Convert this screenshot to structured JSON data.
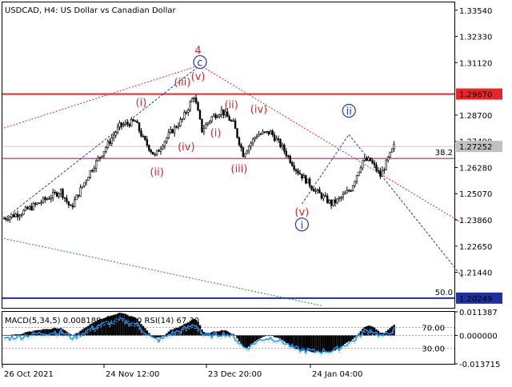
{
  "chart_data": {
    "type": "candlestick",
    "symbol_caption": "USDCAD, H4:  US Dollar vs Canadian Dollar",
    "price_axis": {
      "ticks": [
        1.3354,
        1.3233,
        1.3112,
        1.287,
        1.2749,
        1.2628,
        1.2507,
        1.2386,
        1.2265,
        1.2144
      ],
      "ticks_text": [
        "1.33540",
        "1.32330",
        "1.31120",
        "1.28700",
        "1.27490",
        "1.26280",
        "1.25070",
        "1.23860",
        "1.22650",
        "1.21440"
      ],
      "range": [
        1.198,
        1.339
      ]
    },
    "price_tags": [
      {
        "value": 1.2967,
        "label": "1.29670",
        "color": "#e8262a"
      },
      {
        "value": 1.27252,
        "label": "1.27252",
        "color": "#c0c0c0"
      },
      {
        "value": 1.20249,
        "label": "1.20249",
        "color": "#1f2f9e"
      }
    ],
    "levels": [
      {
        "value": 1.2967,
        "color": "#e8262a",
        "label": ""
      },
      {
        "value": 1.267,
        "color": "#8a1a4a",
        "label": "38.2"
      },
      {
        "value": 1.20249,
        "color": "#1f2f9e",
        "label": "50.0"
      }
    ],
    "time_axis": [
      "26 Oct 2021",
      "24 Nov 12:00",
      "23 Dec 20:00",
      "24 Jan 04:00"
    ],
    "bar_count": 200,
    "price_path": [
      [
        0,
        1.239
      ],
      [
        10,
        1.242
      ],
      [
        20,
        1.247
      ],
      [
        30,
        1.252
      ],
      [
        35,
        1.244
      ],
      [
        45,
        1.261
      ],
      [
        55,
        1.275
      ],
      [
        60,
        1.282
      ],
      [
        68,
        1.284
      ],
      [
        72,
        1.276
      ],
      [
        78,
        1.268
      ],
      [
        82,
        1.274
      ],
      [
        86,
        1.279
      ],
      [
        92,
        1.285
      ],
      [
        98,
        1.296
      ],
      [
        102,
        1.28
      ],
      [
        107,
        1.286
      ],
      [
        112,
        1.289
      ],
      [
        118,
        1.283
      ],
      [
        123,
        1.269
      ],
      [
        130,
        1.278
      ],
      [
        137,
        1.279
      ],
      [
        143,
        1.272
      ],
      [
        150,
        1.262
      ],
      [
        160,
        1.252
      ],
      [
        168,
        1.246
      ],
      [
        172,
        1.248
      ],
      [
        178,
        1.253
      ],
      [
        184,
        1.266
      ],
      [
        188,
        1.266
      ],
      [
        193,
        1.259
      ],
      [
        200,
        1.2725
      ]
    ],
    "wave_labels": [
      {
        "text": "4",
        "bar": 99,
        "price": 1.3155,
        "color": "#d7262c"
      },
      {
        "text": "c",
        "bar": 100,
        "price": 1.31,
        "color": "#1d3bb3",
        "circled": true
      },
      {
        "text": "(v)",
        "bar": 99,
        "price": 1.3035,
        "color": "#d7262c"
      },
      {
        "text": "(iii)",
        "bar": 91,
        "price": 1.301,
        "color": "#d7262c"
      },
      {
        "text": "(i)",
        "bar": 70,
        "price": 1.2915,
        "color": "#d7262c"
      },
      {
        "text": "(ii)",
        "bar": 78,
        "price": 1.2595,
        "color": "#d7262c"
      },
      {
        "text": "(iv)",
        "bar": 93,
        "price": 1.271,
        "color": "#d7262c"
      },
      {
        "text": "(ii)",
        "bar": 116,
        "price": 1.2905,
        "color": "#d7262c"
      },
      {
        "text": "(i)",
        "bar": 108,
        "price": 1.2775,
        "color": "#d7262c"
      },
      {
        "text": "(iv)",
        "bar": 130,
        "price": 1.2885,
        "color": "#d7262c"
      },
      {
        "text": "(iii)",
        "bar": 120,
        "price": 1.261,
        "color": "#d7262c"
      },
      {
        "text": "(v)",
        "bar": 152,
        "price": 1.241,
        "color": "#d7262c"
      },
      {
        "text": "i",
        "bar": 152,
        "price": 1.235,
        "color": "#1d3bb3",
        "circled": true
      },
      {
        "text": "ii",
        "bar": 176,
        "price": 1.2875,
        "color": "#1d3bb3",
        "circled": true
      }
    ],
    "trend_lines": [
      {
        "from": [
          0,
          1.281
        ],
        "to": [
          100,
          1.31
        ],
        "color": "#e8262a",
        "dash": "2,2"
      },
      {
        "from": [
          100,
          1.31
        ],
        "to": [
          234,
          1.237
        ],
        "color": "#e8262a",
        "dash": "2,2"
      },
      {
        "from": [
          0,
          1.23
        ],
        "to": [
          162,
          1.199
        ],
        "color": "#2a8a2a",
        "dash": "2,2"
      },
      {
        "from": [
          0,
          1.239
        ],
        "to": [
          100,
          1.31
        ],
        "color": "#1d3bb3",
        "dash": "3,2"
      },
      {
        "from": [
          152,
          1.246
        ],
        "to": [
          176,
          1.278
        ],
        "color": "#1d3bb3",
        "dash": "3,2"
      },
      {
        "from": [
          176,
          1.278
        ],
        "to": [
          234,
          1.212
        ],
        "color": "#1d3bb3",
        "dash": "3,2"
      }
    ],
    "indicator": {
      "caption": "MACD(5,34,5) 0.008189 0.007030 RSI(14) 67.30",
      "left_ticks": [
        {
          "text": "70.00",
          "value": 70
        },
        {
          "text": "30.00",
          "value": 30
        }
      ],
      "right_ticks": [
        {
          "text": "0.011387",
          "value": 0.011387
        },
        {
          "text": "0.000000",
          "value": 0.0
        },
        {
          "text": "-0.013715",
          "value": -0.013715
        }
      ],
      "macd_range": [
        -0.013715,
        0.011387
      ]
    }
  }
}
